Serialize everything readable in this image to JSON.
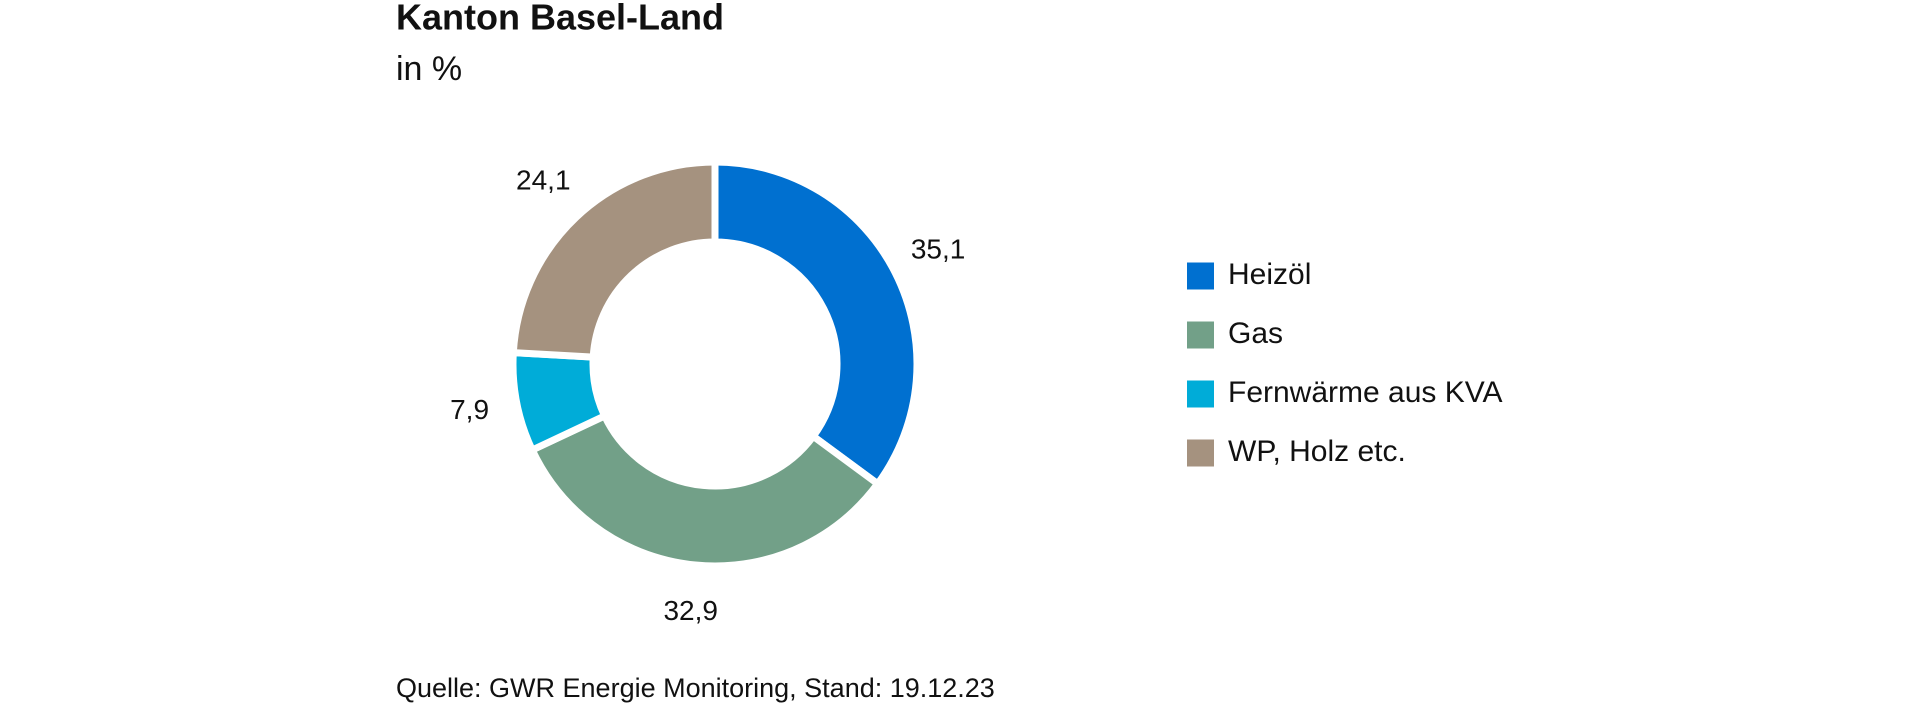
{
  "chart_data": {
    "type": "donut",
    "title": "Kanton Basel-Land",
    "subtitle": "in %",
    "categories": [
      "Heizöl",
      "Gas",
      "Fernwärme aus KVA",
      "WP, Holz etc."
    ],
    "values": [
      35.1,
      32.9,
      7.9,
      24.1
    ],
    "value_labels": [
      "35,1",
      "32,9",
      "7,9",
      "24,1"
    ],
    "colors": [
      "#0070d0",
      "#72a088",
      "#00acd8",
      "#a5927f"
    ],
    "legend": "right",
    "source": "Quelle: GWR Energie Monitoring, Stand: 19.12.23"
  }
}
